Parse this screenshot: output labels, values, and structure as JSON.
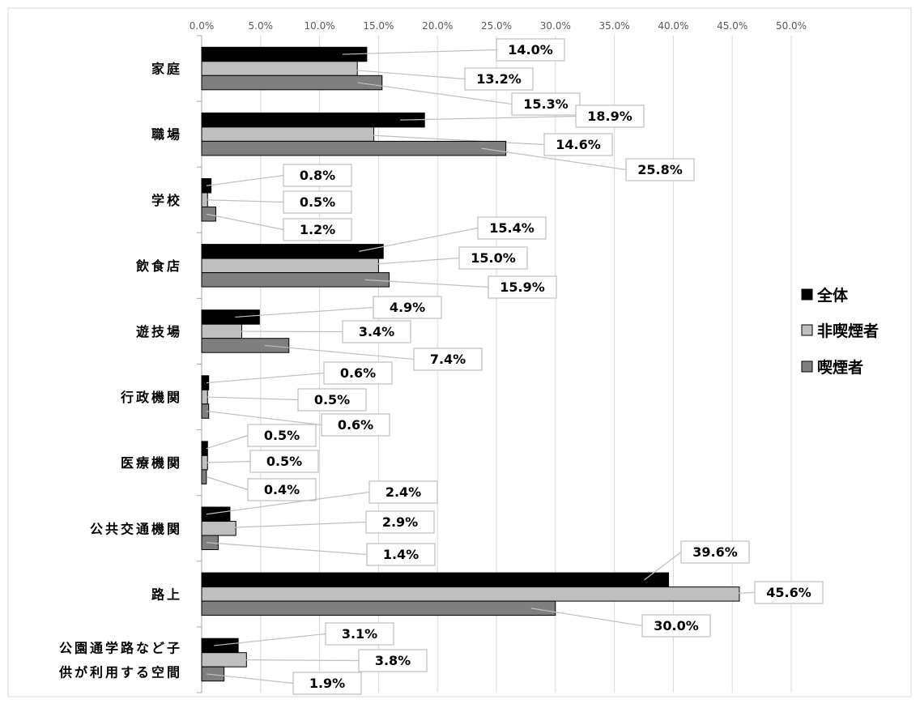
{
  "chart_data": {
    "type": "bar",
    "orientation": "horizontal",
    "title": "",
    "xlabel": "",
    "ylabel": "",
    "xlim": [
      0,
      50
    ],
    "x_ticks": [
      "0.0%",
      "5.0%",
      "10.0%",
      "15.0%",
      "20.0%",
      "25.0%",
      "30.0%",
      "35.0%",
      "40.0%",
      "45.0%",
      "50.0%"
    ],
    "grid": true,
    "legend_position": "right",
    "categories": [
      [
        "家庭"
      ],
      [
        "職場"
      ],
      [
        "学校"
      ],
      [
        "飲食店"
      ],
      [
        "遊技場"
      ],
      [
        "行政機関"
      ],
      [
        "医療機関"
      ],
      [
        "公共交通機関"
      ],
      [
        "路上"
      ],
      [
        "公園通学路など子",
        "供が利用する空間"
      ]
    ],
    "series": [
      {
        "name": "全体",
        "color": "#000000",
        "values": [
          14.0,
          18.9,
          0.8,
          15.4,
          4.9,
          0.6,
          0.5,
          2.4,
          39.6,
          3.1
        ],
        "labels": [
          "14.0%",
          "18.9%",
          "0.8%",
          "15.4%",
          "4.9%",
          "0.6%",
          "0.5%",
          "2.4%",
          "39.6%",
          "3.1%"
        ]
      },
      {
        "name": "非喫煙者",
        "color": "#bfbfbf",
        "values": [
          13.2,
          14.6,
          0.5,
          15.0,
          3.4,
          0.5,
          0.5,
          2.9,
          45.6,
          3.8
        ],
        "labels": [
          "13.2%",
          "14.6%",
          "0.5%",
          "15.0%",
          "3.4%",
          "0.5%",
          "0.5%",
          "2.9%",
          "45.6%",
          "3.8%"
        ]
      },
      {
        "name": "喫煙者",
        "color": "#7f7f7f",
        "values": [
          15.3,
          25.8,
          1.2,
          15.9,
          7.4,
          0.6,
          0.4,
          1.4,
          30.0,
          1.9
        ],
        "labels": [
          "15.3%",
          "25.8%",
          "1.2%",
          "15.9%",
          "7.4%",
          "0.6%",
          "0.4%",
          "1.4%",
          "30.0%",
          "1.9%"
        ]
      }
    ]
  }
}
